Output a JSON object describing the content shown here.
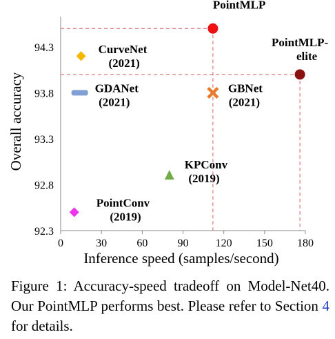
{
  "chart_data": {
    "type": "scatter",
    "xlabel": "Inference speed (samples/second)",
    "ylabel": "Overall accuracy",
    "xlim": [
      0,
      180
    ],
    "ylim": [
      92.3,
      94.6
    ],
    "xticks": [
      0,
      30,
      60,
      90,
      120,
      150,
      180
    ],
    "yticks": [
      92.3,
      92.8,
      93.3,
      93.8,
      94.3
    ],
    "xtick_labels": [
      "0",
      "30",
      "60",
      "90",
      "120",
      "150",
      "180"
    ],
    "ytick_labels": [
      "92.3",
      "92.8",
      "93.3",
      "93.8",
      "94.3"
    ],
    "grid": false,
    "points": [
      {
        "name": "PointMLP",
        "year": "",
        "x": 112,
        "y": 94.5,
        "marker": "circle",
        "color": "#ee1111"
      },
      {
        "name": "PointMLP-",
        "name2": "elite",
        "year": "",
        "x": 176,
        "y": 94.0,
        "marker": "circle",
        "color": "#8b1010"
      },
      {
        "name": "CurveNet",
        "year": "(2021)",
        "x": 15,
        "y": 94.2,
        "marker": "diamond",
        "color": "#f5b800"
      },
      {
        "name": "GDANet",
        "year": "(2021)",
        "x": 14,
        "y": 93.8,
        "marker": "bar",
        "color": "#7f9fd5"
      },
      {
        "name": "GBNet",
        "year": "(2021)",
        "x": 112,
        "y": 93.8,
        "marker": "cross",
        "color": "#e87b2d"
      },
      {
        "name": "KPConv",
        "year": "(2019)",
        "x": 80,
        "y": 92.9,
        "marker": "triangle",
        "color": "#72ab48"
      },
      {
        "name": "PointConv",
        "year": "(2019)",
        "x": 10,
        "y": 92.5,
        "marker": "diamond",
        "color": "#ee33ee"
      }
    ],
    "guide_color": "#d06060"
  },
  "caption": {
    "text_before": "Figure 1: Accuracy-speed tradeoff on Model-Net40. Our PointMLP performs best. Please refer to Section ",
    "ref": "4",
    "text_after": " for details."
  }
}
